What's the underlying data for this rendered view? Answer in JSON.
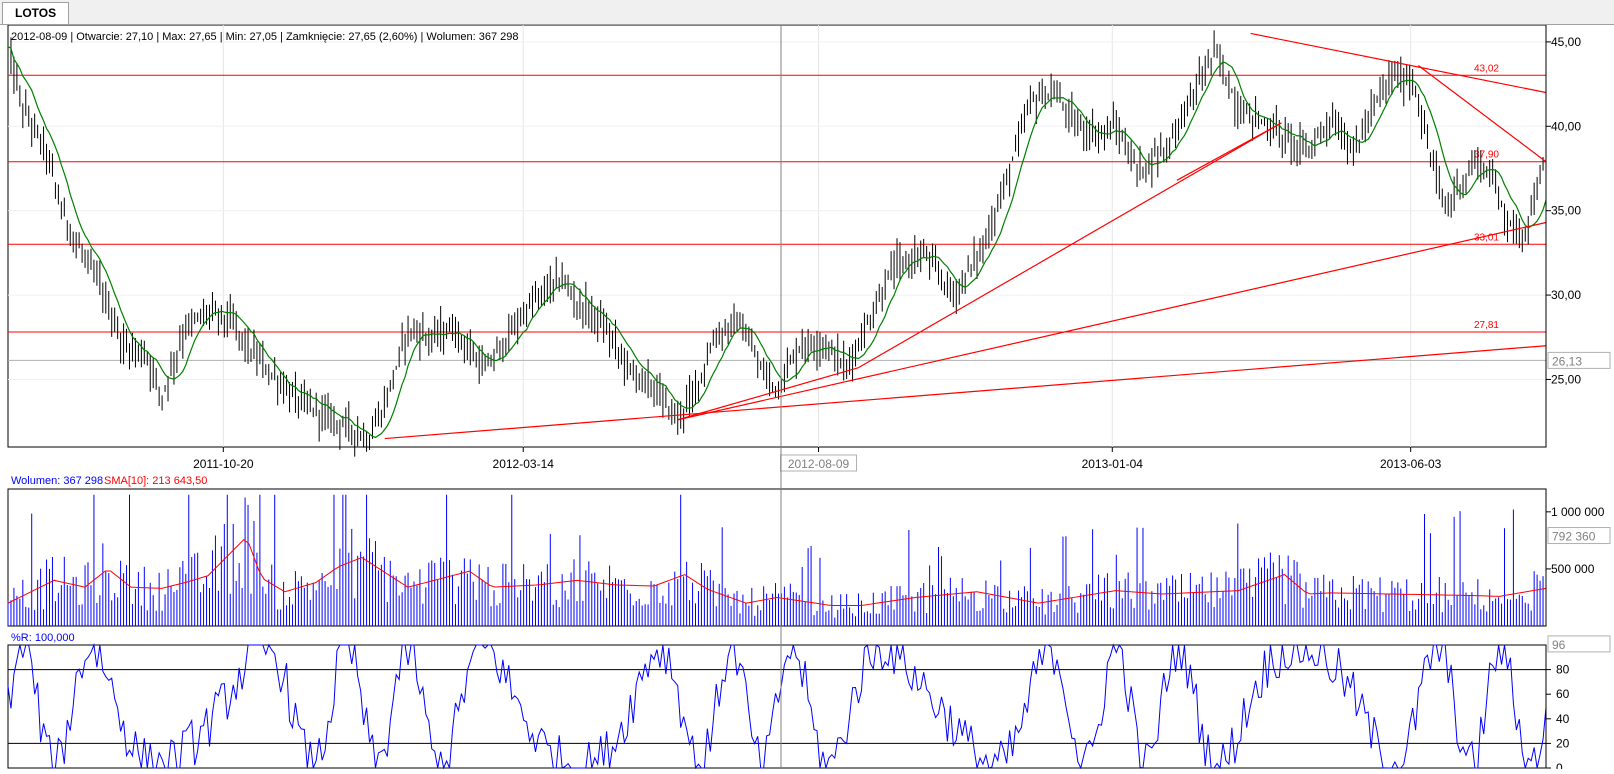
{
  "tab": {
    "label": "LOTOS"
  },
  "info_line": "2012-08-09 | Otwarcie: 27,10 | Max: 27,65 | Min: 27,05 | Zamknięcie: 27,65 (2,60%) | Wolumen: 367 298",
  "volume_legend": {
    "volume_label": "Wolumen: 367 298",
    "sma_label": "SMA[10]: 213 643,50"
  },
  "wr_legend": "%R: 100,000",
  "colors": {
    "price_bar": "#000000",
    "ma": "#008000",
    "hline": "#ff0000",
    "trend": "#ff0000",
    "volume": "#0000ff",
    "sma": "#ff0000",
    "wr": "#0000ff"
  },
  "chart_data": [
    {
      "type": "bar",
      "name": "price",
      "ylim": [
        21,
        46
      ],
      "ytick_labels": [
        "45,00",
        "40,00",
        "35,00",
        "30,00",
        "25,00"
      ],
      "ytick_values": [
        45,
        40,
        35,
        30,
        25
      ],
      "x_date_labels": [
        "2011-10-20",
        "2012-03-14",
        "2012-08-09",
        "2013-01-04",
        "2013-06-03"
      ],
      "x_date_positions": [
        0.14,
        0.335,
        0.527,
        0.718,
        0.912
      ],
      "cursor_label": "2012-08-09",
      "last_value_label": "26,13",
      "last_value": 26.13,
      "horizontal_levels": [
        {
          "value": 43.02,
          "label": "43,02"
        },
        {
          "value": 37.9,
          "label": "37,90"
        },
        {
          "value": 33.01,
          "label": "33,01"
        },
        {
          "value": 27.81,
          "label": "27,81"
        }
      ],
      "trendlines": [
        {
          "x": [
            0.245,
            1.0
          ],
          "y": [
            21.5,
            27.0
          ]
        },
        {
          "x": [
            0.435,
            0.553
          ],
          "y": [
            22.6,
            25.7
          ]
        },
        {
          "x": [
            0.435,
            1.0
          ],
          "y": [
            22.6,
            34.3
          ]
        },
        {
          "x": [
            0.553,
            0.828
          ],
          "y": [
            25.7,
            40.2
          ]
        },
        {
          "x": [
            0.76,
            0.828
          ],
          "y": [
            36.8,
            40.2
          ]
        },
        {
          "x": [
            0.808,
            1.0
          ],
          "y": [
            45.5,
            42.0
          ]
        },
        {
          "x": [
            0.917,
            1.0
          ],
          "y": [
            43.6,
            37.9
          ]
        }
      ],
      "price_anchors": {
        "x": [
          0.0,
          0.01,
          0.025,
          0.035,
          0.045,
          0.06,
          0.075,
          0.09,
          0.1,
          0.115,
          0.13,
          0.145,
          0.155,
          0.17,
          0.185,
          0.2,
          0.215,
          0.235,
          0.245,
          0.26,
          0.275,
          0.29,
          0.31,
          0.325,
          0.34,
          0.36,
          0.37,
          0.385,
          0.405,
          0.42,
          0.435,
          0.445,
          0.46,
          0.475,
          0.49,
          0.5,
          0.515,
          0.53,
          0.545,
          0.555,
          0.575,
          0.595,
          0.615,
          0.635,
          0.65,
          0.665,
          0.68,
          0.695,
          0.71,
          0.72,
          0.735,
          0.755,
          0.768,
          0.785,
          0.8,
          0.812,
          0.828,
          0.845,
          0.86,
          0.875,
          0.89,
          0.9,
          0.915,
          0.92,
          0.935,
          0.94,
          0.955,
          0.965,
          0.975,
          0.985,
          1.0
        ],
        "y": [
          44.5,
          41.0,
          38.5,
          35.0,
          33.0,
          30.5,
          27.0,
          26.5,
          24.0,
          28.0,
          29.0,
          28.5,
          27.0,
          25.5,
          24.0,
          23.2,
          22.5,
          21.5,
          23.5,
          28.0,
          27.5,
          28.0,
          25.5,
          27.5,
          29.5,
          31.0,
          29.5,
          28.5,
          25.5,
          24.5,
          22.7,
          24.0,
          27.5,
          28.5,
          25.5,
          24.5,
          27.0,
          27.2,
          25.7,
          27.5,
          31.5,
          32.5,
          30.0,
          33.0,
          37.0,
          41.5,
          42.0,
          40.0,
          39.5,
          40.0,
          37.3,
          39.0,
          41.5,
          44.5,
          41.0,
          40.5,
          39.5,
          38.5,
          40.5,
          38.5,
          41.5,
          43.0,
          42.5,
          40.0,
          35.0,
          36.0,
          38.0,
          37.0,
          34.5,
          33.5,
          38.0
        ]
      }
    },
    {
      "type": "bar",
      "name": "volume",
      "ytick_labels": [
        "1 000 000",
        "500 000"
      ],
      "ytick_values": [
        1000000,
        500000
      ],
      "ylim": [
        0,
        1200000
      ],
      "last_value_label": "792 360",
      "last_value": 792360,
      "sma_anchors": {
        "x": [
          0.0,
          0.03,
          0.05,
          0.065,
          0.08,
          0.1,
          0.115,
          0.13,
          0.155,
          0.165,
          0.18,
          0.2,
          0.215,
          0.23,
          0.26,
          0.28,
          0.3,
          0.315,
          0.345,
          0.37,
          0.395,
          0.42,
          0.44,
          0.455,
          0.48,
          0.5,
          0.535,
          0.555,
          0.59,
          0.63,
          0.67,
          0.72,
          0.75,
          0.8,
          0.83,
          0.845,
          0.86,
          0.9,
          0.94,
          0.97,
          1.0
        ],
        "y": [
          200000,
          400000,
          340000,
          500000,
          340000,
          330000,
          380000,
          440000,
          780000,
          420000,
          300000,
          380000,
          520000,
          600000,
          340000,
          410000,
          480000,
          340000,
          360000,
          400000,
          360000,
          350000,
          450000,
          320000,
          200000,
          250000,
          180000,
          180000,
          250000,
          300000,
          200000,
          310000,
          280000,
          310000,
          450000,
          280000,
          290000,
          280000,
          270000,
          260000,
          330000
        ]
      }
    },
    {
      "type": "line",
      "name": "williams_r",
      "ylim": [
        0,
        100
      ],
      "ytick_labels": [
        "80",
        "60",
        "40",
        "20",
        "0"
      ],
      "ytick_values": [
        80,
        60,
        40,
        20,
        0
      ],
      "reference_lines": [
        80,
        20
      ],
      "last_value_label": "96",
      "last_value": 96
    }
  ]
}
